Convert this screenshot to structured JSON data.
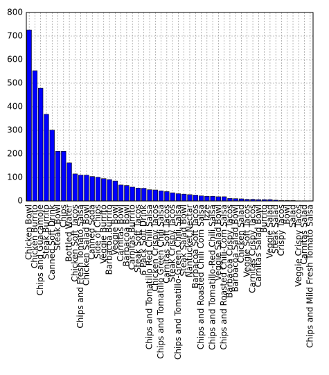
{
  "chart_data": {
    "type": "bar",
    "categories": [
      "Chicken Bowl",
      "Chicken Burrito",
      "Chips and Guacamole",
      "Steak Burrito",
      "Canned Soft Drink",
      "Steak Bowl",
      "Chips",
      "Bottled Water",
      "Chicken Soft Tacos",
      "Chips and Fresh Tomato Salsa",
      "Chicken Salad Bowl",
      "Canned Soda",
      "Side of Chips",
      "Veggie Burrito",
      "Barbacoa Burrito",
      "Veggie Bowl",
      "Carnitas Bowl",
      "Barbacoa Bowl",
      "Carnitas Burrito",
      "Steak Soft Tacos",
      "6 Pack Soft Drink",
      "Chips and Tomatillo Red Chili Salsa",
      "Chicken Crispy Tacos",
      "Chips and Tomatillo Green Chili Salsa",
      "Carnitas Soft Tacos",
      "Steak Crispy Tacos",
      "Chips and Tomatillo-Green Chili Salsa",
      "Steak Salad Bowl",
      "Nantucket Nectar",
      "Barbacoa Soft Tacos",
      "Chips and Roasted Chili Corn Salsa",
      "Izze",
      "Chips and Tomatillo-Red Chili Salsa",
      "Veggie Salad Bowl",
      "Chips and Roasted Chili-Corn Salsa",
      "Barbacoa Crispy Tacos",
      "Barbacoa Salad Bowl",
      "Chicken Salad",
      "Veggie Soft Tacos",
      "Carnitas Crispy Tacos",
      "Carnitas Salad Bowl",
      "Burrito",
      "Veggie Salad",
      "Steak Salad",
      "Crispy Tacos",
      "Bowl",
      "Salad",
      "Veggie Crispy Tacos",
      "Carnitas Salad",
      "Chips and Mild Fresh Tomato Salsa"
    ],
    "values": [
      726,
      553,
      479,
      368,
      301,
      211,
      211,
      162,
      115,
      110,
      110,
      104,
      101,
      95,
      91,
      85,
      68,
      66,
      59,
      55,
      54,
      48,
      47,
      43,
      40,
      35,
      31,
      29,
      27,
      25,
      22,
      20,
      20,
      18,
      18,
      11,
      10,
      9,
      7,
      7,
      6,
      6,
      6,
      4,
      2,
      2,
      2,
      1,
      1,
      1
    ],
    "color": "#0000ff",
    "ylim": [
      0,
      800
    ],
    "yticks": [
      0,
      100,
      200,
      300,
      400,
      500,
      600,
      700,
      800
    ],
    "grid": true
  }
}
